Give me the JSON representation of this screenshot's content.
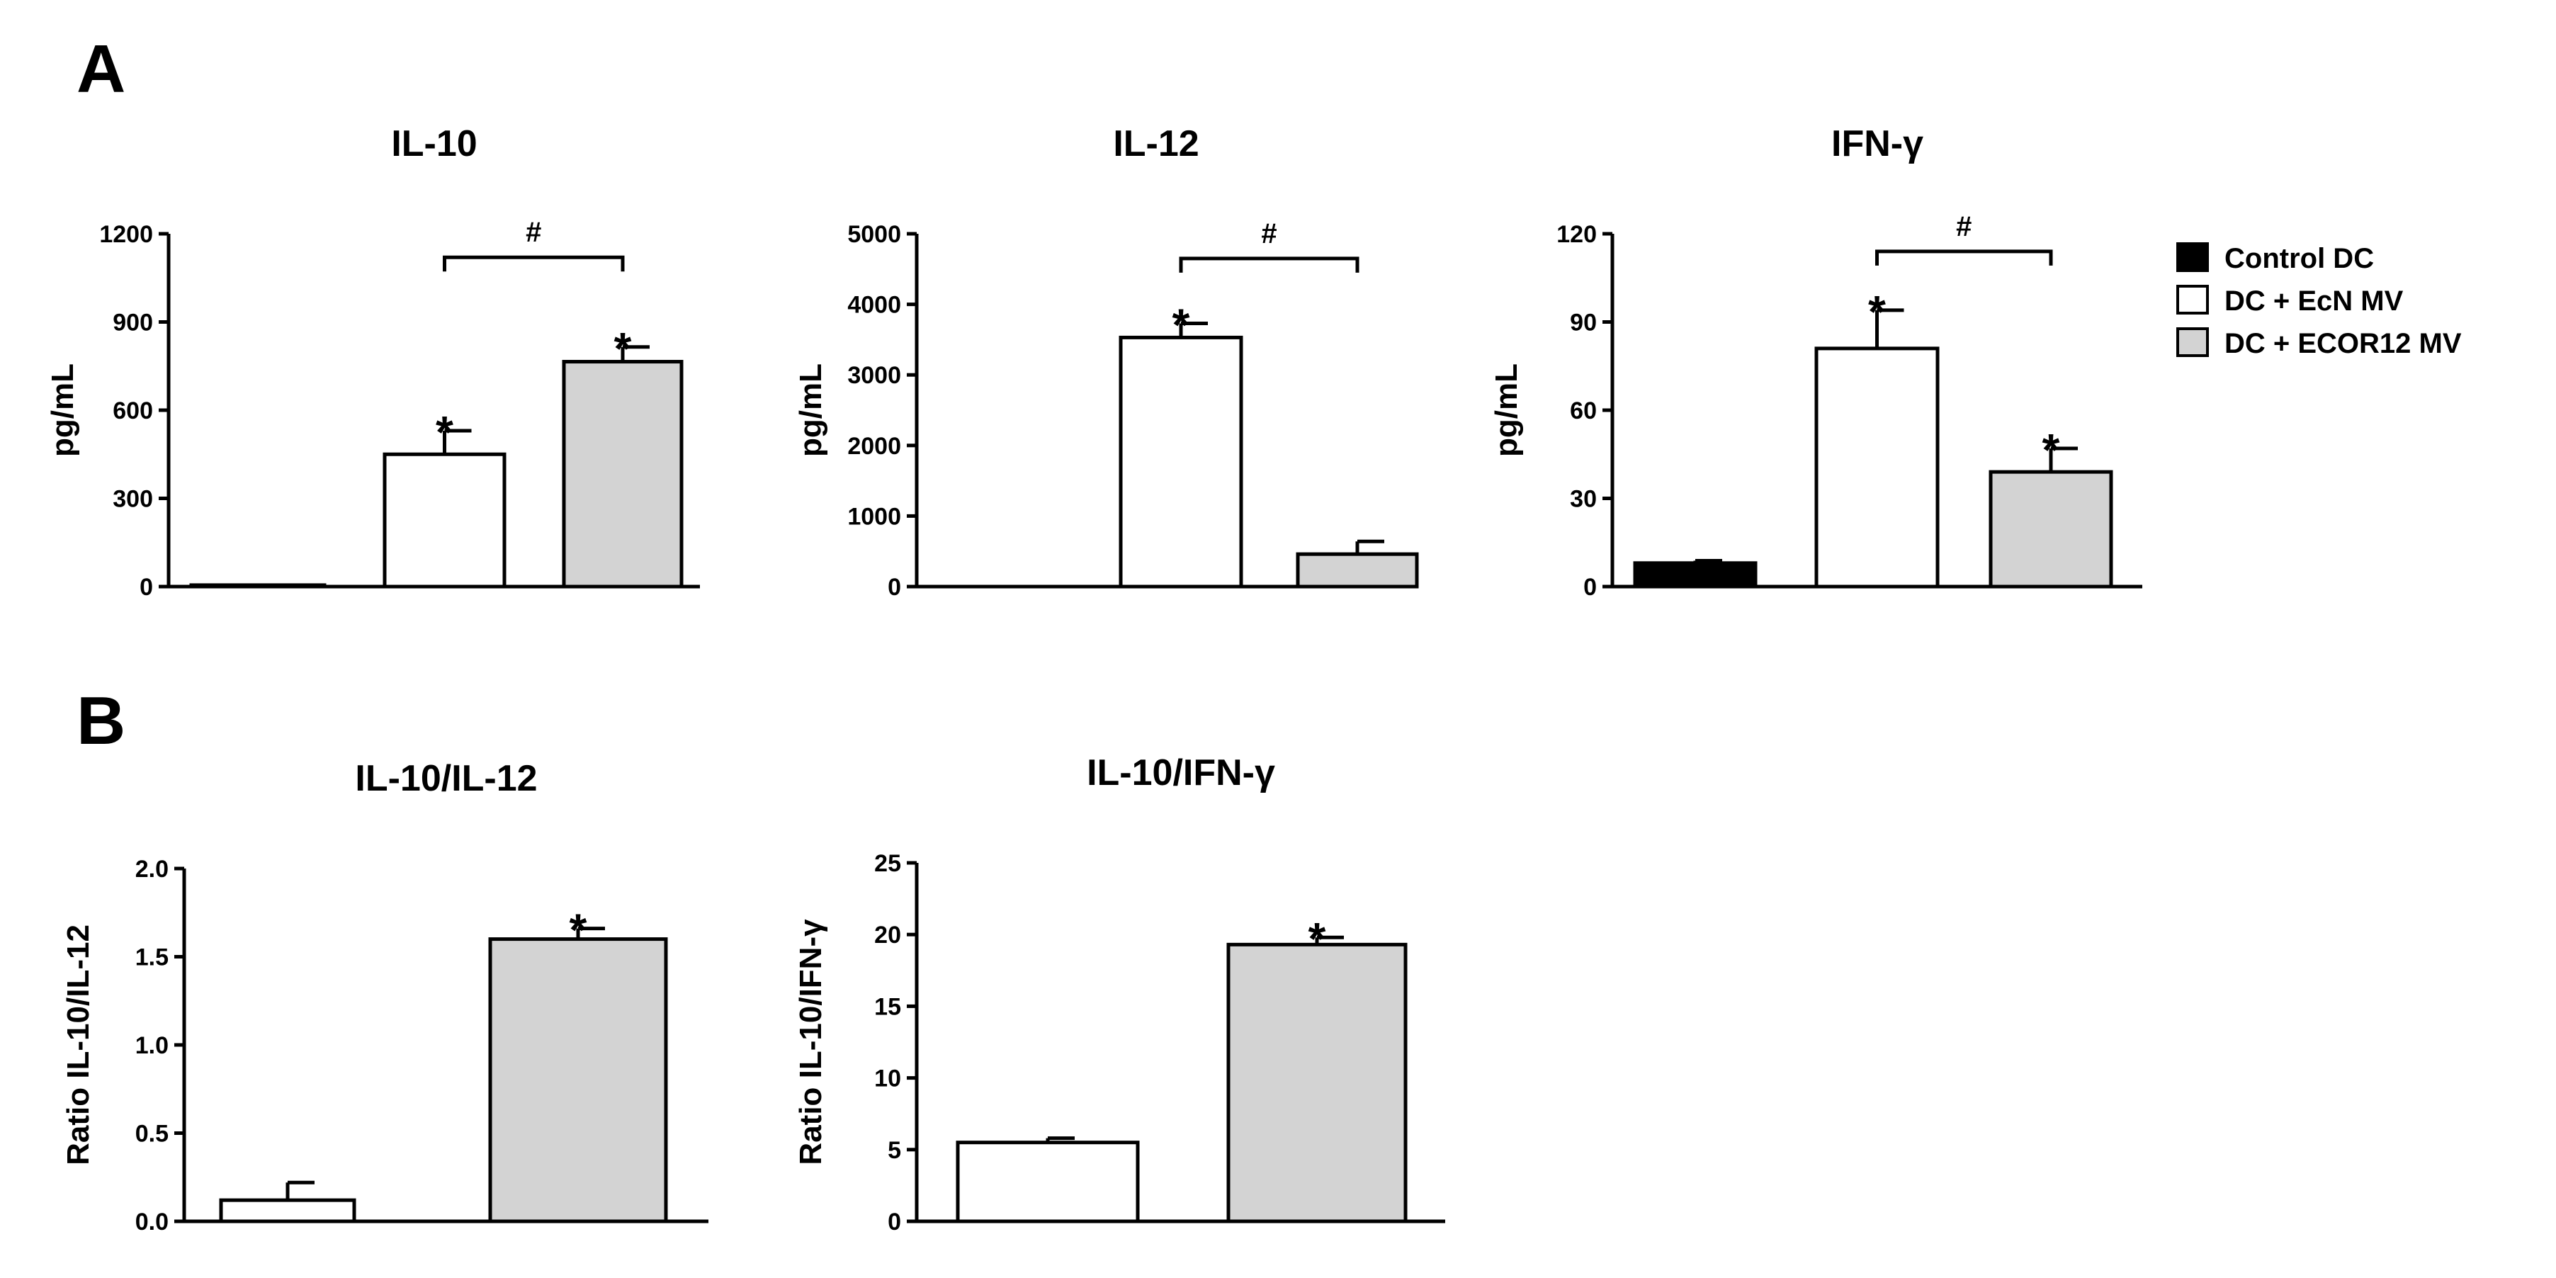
{
  "panels": [
    {
      "letter": "A"
    },
    {
      "letter": "B"
    }
  ],
  "legend": {
    "placement": "right",
    "entries": [
      {
        "label": "Control DC",
        "color": "#000000"
      },
      {
        "label": "DC + EcN MV",
        "color": "#ffffff"
      },
      {
        "label": "DC + ECOR12 MV",
        "color": "#d3d3d3"
      }
    ]
  },
  "chart_data": [
    {
      "type": "bar",
      "panel": "A",
      "title": "IL-10",
      "ylabel": "pg/mL",
      "ylim": [
        0,
        1200
      ],
      "yticks": [
        0,
        300,
        600,
        900,
        1200
      ],
      "ytick_labels": [
        "0",
        "300",
        "600",
        "900",
        "1200"
      ],
      "categories": [
        "Control DC",
        "DC + EcN MV",
        "DC + ECOR12 MV"
      ],
      "values": [
        5,
        450,
        765
      ],
      "errors": [
        0,
        80,
        50
      ],
      "colors": [
        "#000000",
        "#ffffff",
        "#d3d3d3"
      ],
      "sig_stars": [
        "",
        "*",
        "*"
      ],
      "comparisons": [
        {
          "from": 1,
          "to": 2,
          "label": "#",
          "y": 1120
        }
      ]
    },
    {
      "type": "bar",
      "panel": "A",
      "title": "IL-12",
      "ylabel": "pg/mL",
      "ylim": [
        0,
        5000
      ],
      "yticks": [
        0,
        1000,
        2000,
        3000,
        4000,
        5000
      ],
      "ytick_labels": [
        "0",
        "1000",
        "2000",
        "3000",
        "4000",
        "5000"
      ],
      "categories": [
        "Control DC",
        "DC + EcN MV",
        "DC + ECOR12 MV"
      ],
      "values": [
        0,
        3530,
        460
      ],
      "errors": [
        0,
        200,
        180
      ],
      "colors": [
        "#000000",
        "#ffffff",
        "#d3d3d3"
      ],
      "sig_stars": [
        "",
        "*",
        ""
      ],
      "comparisons": [
        {
          "from": 1,
          "to": 2,
          "label": "#",
          "y": 4650
        }
      ]
    },
    {
      "type": "bar",
      "panel": "A",
      "title": "IFN-γ",
      "ylabel": "pg/mL",
      "ylim": [
        0,
        120
      ],
      "yticks": [
        0,
        30,
        60,
        90,
        120
      ],
      "ytick_labels": [
        "0",
        "30",
        "60",
        "90",
        "120"
      ],
      "categories": [
        "Control DC",
        "DC + EcN MV",
        "DC + ECOR12 MV"
      ],
      "values": [
        8,
        81,
        39
      ],
      "errors": [
        0.8,
        13,
        8
      ],
      "colors": [
        "#000000",
        "#ffffff",
        "#d3d3d3"
      ],
      "sig_stars": [
        "",
        "*",
        "*"
      ],
      "comparisons": [
        {
          "from": 1,
          "to": 2,
          "label": "#",
          "y": 114
        }
      ]
    },
    {
      "type": "bar",
      "panel": "B",
      "title": "IL-10/IL-12",
      "ylabel": "Ratio IL-10/IL-12",
      "ylim": [
        0,
        2.0
      ],
      "yticks": [
        0,
        0.5,
        1.0,
        1.5,
        2.0
      ],
      "ytick_labels": [
        "0.0",
        "0.5",
        "1.0",
        "1.5",
        "2.0"
      ],
      "categories": [
        "DC + EcN MV",
        "DC + ECOR12 MV"
      ],
      "values": [
        0.12,
        1.6
      ],
      "errors": [
        0.1,
        0.06
      ],
      "colors": [
        "#ffffff",
        "#d3d3d3"
      ],
      "sig_stars": [
        "",
        "*"
      ],
      "comparisons": []
    },
    {
      "type": "bar",
      "panel": "B",
      "title": "IL-10/IFN-γ",
      "ylabel": "Ratio IL-10/IFN-γ",
      "ylim": [
        0,
        25
      ],
      "yticks": [
        0,
        5,
        10,
        15,
        20,
        25
      ],
      "ytick_labels": [
        "0",
        "5",
        "10",
        "15",
        "20",
        "25"
      ],
      "categories": [
        "DC + EcN MV",
        "DC + ECOR12 MV"
      ],
      "values": [
        5.5,
        19.3
      ],
      "errors": [
        0.3,
        0.5
      ],
      "colors": [
        "#ffffff",
        "#d3d3d3"
      ],
      "sig_stars": [
        "",
        "*"
      ],
      "comparisons": []
    }
  ]
}
